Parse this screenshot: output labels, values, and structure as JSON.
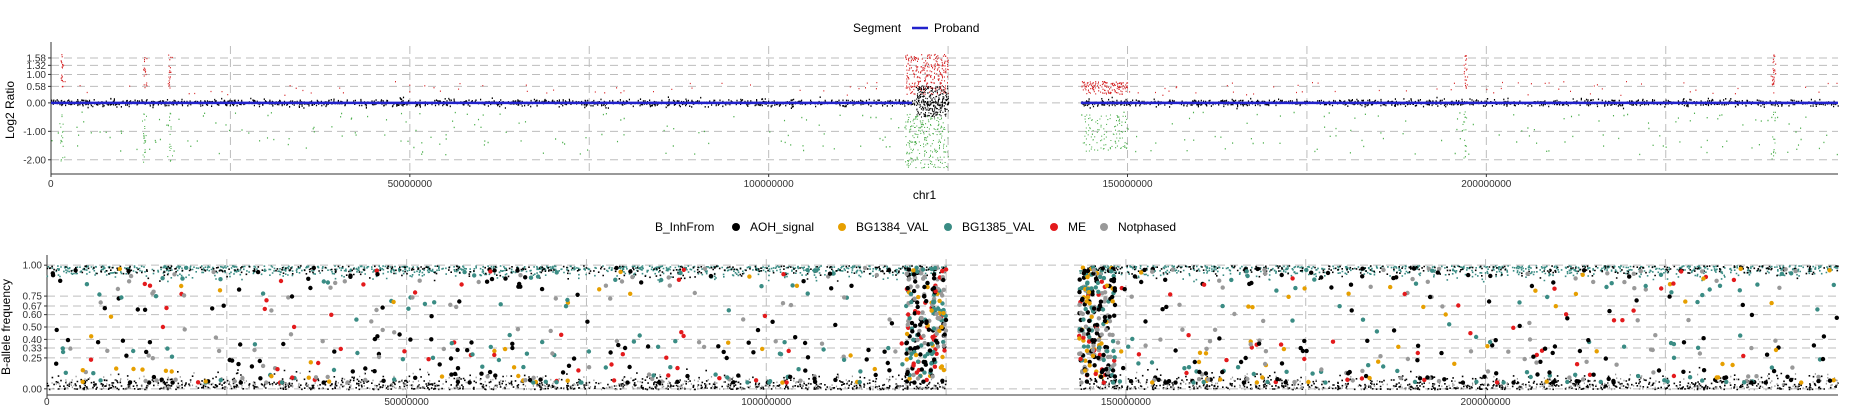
{
  "chart_data": [
    {
      "type": "scatter",
      "legend": {
        "title": "Segment",
        "placement": "top-center",
        "items": [
          {
            "name": "Proband",
            "color": "#2222cc",
            "shape": "line"
          }
        ]
      },
      "xlabel": "chr1",
      "ylabel": "Log2 Ratio",
      "xlim": [
        0,
        249000000
      ],
      "ylim": [
        -2.5,
        2.0
      ],
      "x_ticks": [
        0,
        50000000,
        100000000,
        150000000,
        200000000
      ],
      "x_tick_labels": [
        "0",
        "50000000",
        "100000000",
        "150000000",
        "200000000"
      ],
      "y_ticks": [
        1.58,
        1.32,
        1.0,
        0.58,
        0.0,
        -1.0,
        -2.0
      ],
      "y_tick_labels": [
        "1.58",
        "1.32",
        "1.00",
        "0.58",
        "0.00",
        "-1.00",
        "-2.00"
      ],
      "vertical_gridlines_x": [
        0,
        25000000,
        50000000,
        75000000,
        100000000,
        125000000,
        150000000,
        175000000,
        200000000,
        225000000
      ],
      "series": [
        {
          "name": "Proband",
          "kind": "segment",
          "color": "#2222cc",
          "segments": [
            {
              "x": [
                0,
                120000000
              ],
              "y": 0.0
            },
            {
              "x": [
                143500000,
                249000000
              ],
              "y": 0.0
            }
          ]
        }
      ],
      "point_colors": {
        "neutral": "#000000",
        "gain": "#d62728",
        "loss": "#2ca02c"
      },
      "gaps": [
        [
          125000000,
          143500000
        ]
      ],
      "grid": true
    },
    {
      "type": "scatter",
      "legend": {
        "title": "B_InhFrom",
        "placement": "top-center",
        "items": [
          {
            "name": "AOH_signal",
            "color": "#000000",
            "shape": "dot"
          },
          {
            "name": "BG1384_VAL",
            "color": "#e69f00",
            "shape": "dot"
          },
          {
            "name": "BG1385_VAL",
            "color": "#3a8c84",
            "shape": "dot"
          },
          {
            "name": "ME",
            "color": "#e31a1c",
            "shape": "dot"
          },
          {
            "name": "Notphased",
            "color": "#999999",
            "shape": "dot"
          }
        ]
      },
      "ylabel": "B-allele frequency",
      "xlim": [
        0,
        249000000
      ],
      "ylim": [
        -0.05,
        1.05
      ],
      "x_ticks": [
        0,
        50000000,
        100000000,
        150000000,
        200000000
      ],
      "x_tick_labels": [
        "0",
        "50000000",
        "100000000",
        "150000000",
        "200000000"
      ],
      "y_ticks": [
        1.0,
        0.75,
        0.67,
        0.6,
        0.5,
        0.4,
        0.33,
        0.25,
        0.0
      ],
      "y_tick_labels": [
        "1.00",
        "0.75",
        "0.67",
        "0.60",
        "0.50",
        "0.40",
        "0.33",
        "0.25",
        "0.00"
      ],
      "vertical_gridlines_x": [
        0,
        25000000,
        50000000,
        75000000,
        100000000,
        125000000,
        150000000,
        175000000,
        200000000,
        225000000
      ],
      "gaps": [
        [
          125000000,
          143500000
        ]
      ],
      "grid": true
    }
  ]
}
